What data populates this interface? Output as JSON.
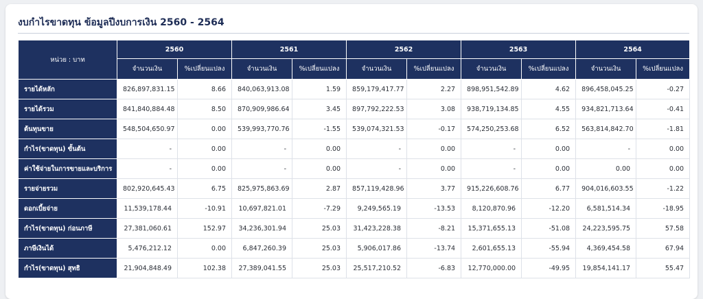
{
  "title": "งบกำไรขาดทุน ข้อมูลปีงบการเงิน 2560 - 2564",
  "unit_label": "หน่วย : บาท",
  "years": [
    "2560",
    "2561",
    "2562",
    "2563",
    "2564"
  ],
  "col_amount": "จำนวนเงิน",
  "col_change": "%เปลี่ยนแปลง",
  "rows": [
    {
      "label": "รายได้หลัก",
      "cells": [
        "826,897,831.15",
        "8.66",
        "840,063,913.08",
        "1.59",
        "859,179,417.77",
        "2.27",
        "898,951,542.89",
        "4.62",
        "896,458,045.25",
        "-0.27"
      ]
    },
    {
      "label": "รายได้รวม",
      "cells": [
        "841,840,884.48",
        "8.50",
        "870,909,986.64",
        "3.45",
        "897,792,222.53",
        "3.08",
        "938,719,134.85",
        "4.55",
        "934,821,713.64",
        "-0.41"
      ]
    },
    {
      "label": "ต้นทุนขาย",
      "cells": [
        "548,504,650.97",
        "0.00",
        "539,993,770.76",
        "-1.55",
        "539,074,321.53",
        "-0.17",
        "574,250,253.68",
        "6.52",
        "563,814,842.70",
        "-1.81"
      ]
    },
    {
      "label": "กำไร(ขาดทุน) ขั้นต้น",
      "cells": [
        "-",
        "0.00",
        "-",
        "0.00",
        "-",
        "0.00",
        "-",
        "0.00",
        "-",
        "0.00"
      ]
    },
    {
      "label": "ค่าใช้จ่ายในการขายและบริการ",
      "cells": [
        "-",
        "0.00",
        "-",
        "0.00",
        "-",
        "0.00",
        "-",
        "0.00",
        "0.00",
        "0.00"
      ]
    },
    {
      "label": "รายจ่ายรวม",
      "cells": [
        "802,920,645.43",
        "6.75",
        "825,975,863.69",
        "2.87",
        "857,119,428.96",
        "3.77",
        "915,226,608.76",
        "6.77",
        "904,016,603.55",
        "-1.22"
      ]
    },
    {
      "label": "ดอกเบี้ยจ่าย",
      "cells": [
        "11,539,178.44",
        "-10.91",
        "10,697,821.01",
        "-7.29",
        "9,249,565.19",
        "-13.53",
        "8,120,870.96",
        "-12.20",
        "6,581,514.34",
        "-18.95"
      ]
    },
    {
      "label": "กำไร(ขาดทุน) ก่อนภาษี",
      "cells": [
        "27,381,060.61",
        "152.97",
        "34,236,301.94",
        "25.03",
        "31,423,228.38",
        "-8.21",
        "15,371,655.13",
        "-51.08",
        "24,223,595.75",
        "57.58"
      ]
    },
    {
      "label": "ภาษีเงินได้",
      "cells": [
        "5,476,212.12",
        "0.00",
        "6,847,260.39",
        "25.03",
        "5,906,017.86",
        "-13.74",
        "2,601,655.13",
        "-55.94",
        "4,369,454.58",
        "67.94"
      ]
    },
    {
      "label": "กำไร(ขาดทุน) สุทธิ",
      "cells": [
        "21,904,848.49",
        "102.38",
        "27,389,041.55",
        "25.03",
        "25,517,210.52",
        "-6.83",
        "12,770,000.00",
        "-49.95",
        "19,854,141.17",
        "55.47"
      ]
    }
  ]
}
